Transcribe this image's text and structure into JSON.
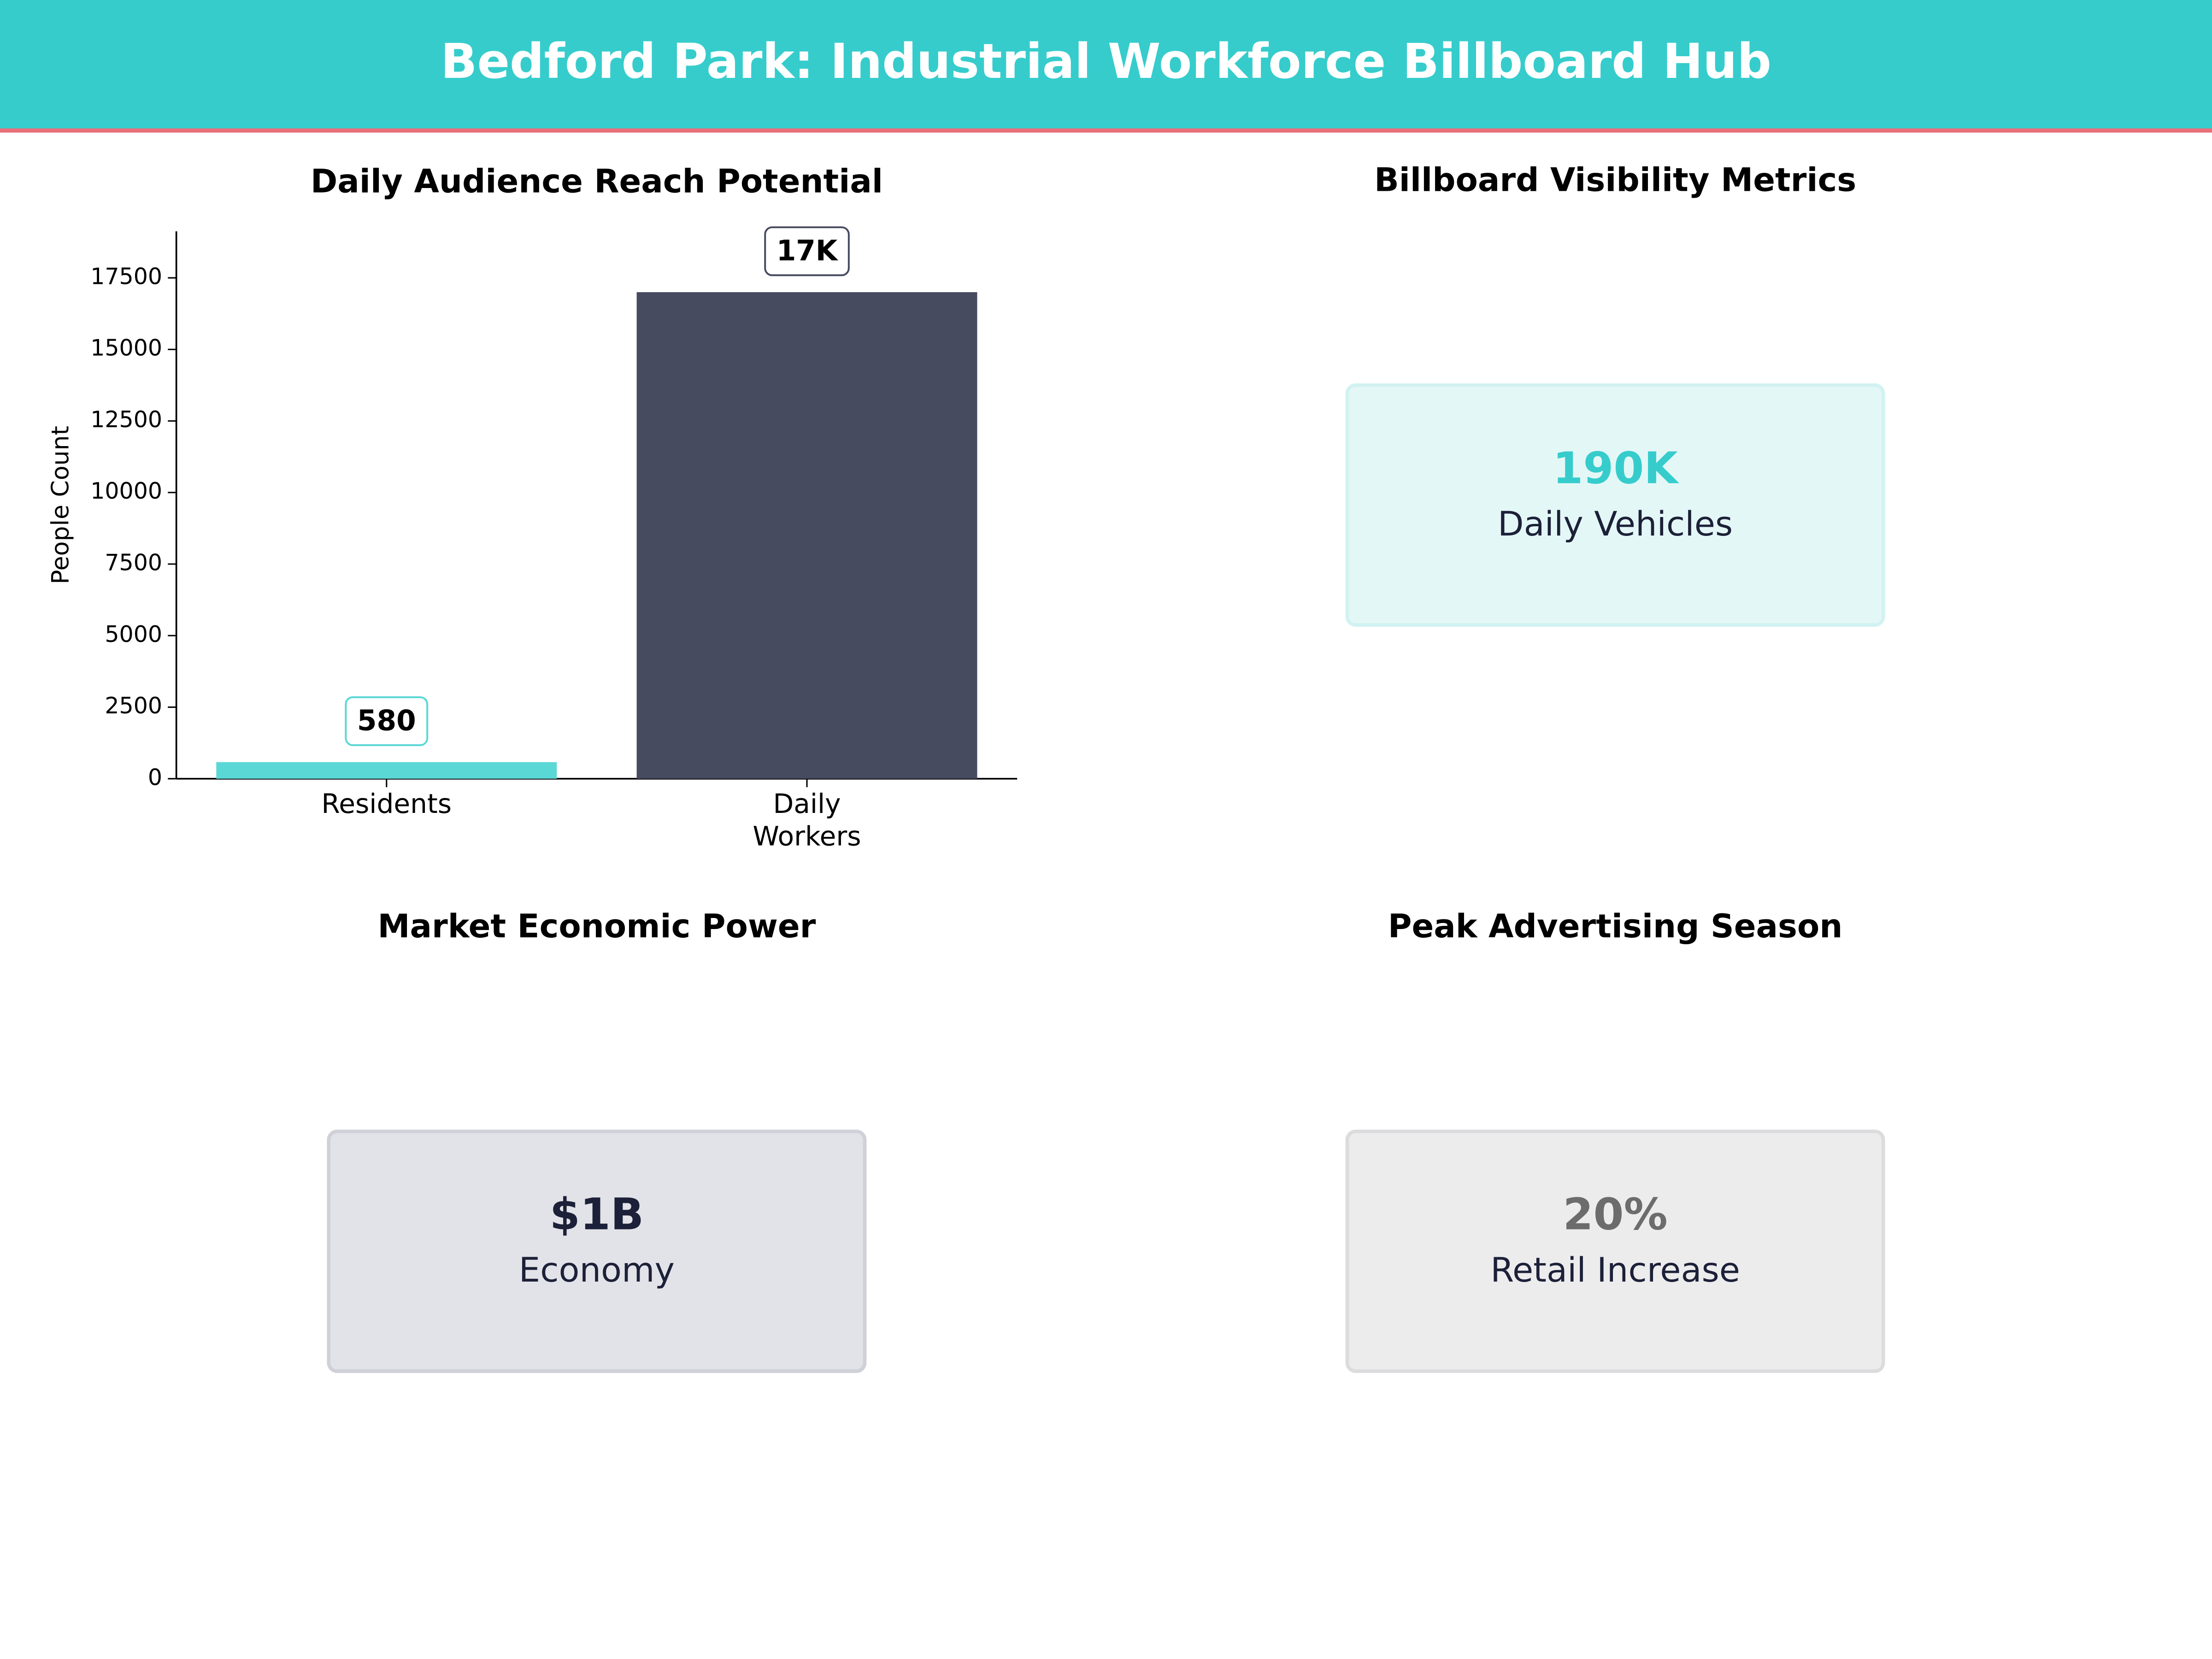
{
  "title": "Bedford Park: Industrial Workforce Billboard Hub",
  "chart_data": {
    "type": "bar",
    "title": "Daily Audience Reach Potential",
    "ylabel": "People Count",
    "categories": [
      "Residents",
      "Daily Workers"
    ],
    "values": [
      580,
      17000
    ],
    "value_labels": [
      "580",
      "17K"
    ],
    "colors": [
      "#5ad8d6",
      "#474b5f"
    ],
    "ylim": [
      0,
      19125
    ],
    "yticks": [
      0,
      2500,
      5000,
      7500,
      10000,
      12500,
      15000,
      17500
    ]
  },
  "cards": [
    {
      "title": "Billboard Visibility Metrics",
      "value": "190K",
      "label": "Daily Vehicles"
    },
    {
      "title": "Market Economic Power",
      "value": "$1B",
      "label": "Economy"
    },
    {
      "title": "Peak Advertising Season",
      "value": "20%",
      "label": "Retail Increase"
    }
  ]
}
